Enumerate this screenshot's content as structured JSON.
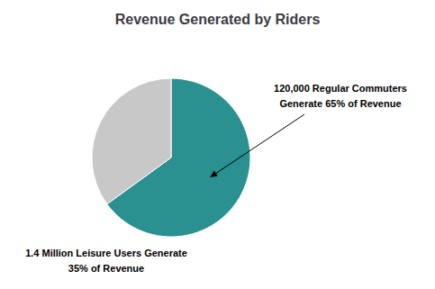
{
  "chart_data": {
    "type": "pie",
    "title": "Revenue Generated by Riders",
    "values": [
      65,
      35
    ],
    "colors": [
      "#2a9090",
      "#c8c8c8"
    ],
    "annotations": [
      [
        "120,000 Regular Commuters",
        "Generate 65% of Revenue"
      ],
      [
        "1.4 Million Leisure Users Generate",
        "35% of Revenue"
      ]
    ]
  }
}
